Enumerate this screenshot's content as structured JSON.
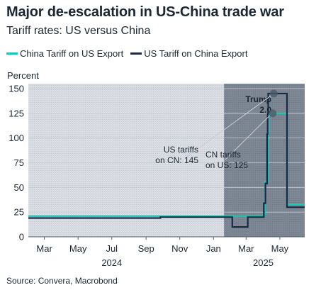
{
  "title": "Major de-escalation in US-China trade war",
  "subtitle": "Tariff rates: US versus China",
  "y_unit_label": "Percent",
  "source": "Source: Convera, Macrobond",
  "colors": {
    "china_series": "#18c6b4",
    "us_series": "#1b2a44",
    "background_shade": "#d9dde3",
    "highlight_shade": "#7d8794",
    "gridline": "#c9cdd3",
    "callout_marker": "#4a5b66"
  },
  "chart_data": {
    "type": "line",
    "title": "Major de-escalation in US-China trade war",
    "subtitle": "Tariff rates: US versus China",
    "ylabel": "Percent",
    "ylim": [
      0,
      155
    ],
    "yticks": [
      0,
      25,
      50,
      75,
      100,
      125,
      150
    ],
    "xlim": [
      "2024-02-01",
      "2025-06-15"
    ],
    "xtick_labels": [
      {
        "label": "Mar",
        "date": "2024-03-01"
      },
      {
        "label": "May",
        "date": "2024-05-01"
      },
      {
        "label": "Jul",
        "date": "2024-07-01"
      },
      {
        "label": "Sep",
        "date": "2024-09-01"
      },
      {
        "label": "Nov",
        "date": "2024-11-01"
      },
      {
        "label": "Jan",
        "date": "2025-01-01"
      },
      {
        "label": "Mar",
        "date": "2025-03-01"
      },
      {
        "label": "May",
        "date": "2025-05-01"
      }
    ],
    "year_labels": [
      {
        "label": "2024",
        "date": "2024-07-01"
      },
      {
        "label": "2025",
        "date": "2025-04-01"
      }
    ],
    "grid": "horizontal",
    "legend_position": "top",
    "shaded_periods": [
      {
        "start": "2024-02-01",
        "end": "2025-01-20",
        "style": "light"
      },
      {
        "start": "2025-01-20",
        "end": "2025-06-15",
        "style": "dark",
        "label": "Trump 2.0"
      }
    ],
    "series": [
      {
        "name": "China Tariff on US Export",
        "color": "#18c6b4",
        "points": [
          [
            "2024-02-01",
            21
          ],
          [
            "2025-04-01",
            21
          ],
          [
            "2025-04-01",
            23
          ],
          [
            "2025-04-04",
            23
          ],
          [
            "2025-04-04",
            56
          ],
          [
            "2025-04-09",
            56
          ],
          [
            "2025-04-09",
            105
          ],
          [
            "2025-04-11",
            105
          ],
          [
            "2025-04-11",
            125
          ],
          [
            "2025-05-14",
            125
          ],
          [
            "2025-05-14",
            33
          ],
          [
            "2025-06-15",
            33
          ]
        ]
      },
      {
        "name": "US Tariff on China Export",
        "color": "#1b2a44",
        "points": [
          [
            "2024-02-01",
            19
          ],
          [
            "2024-09-27",
            19
          ],
          [
            "2024-09-27",
            20
          ],
          [
            "2025-02-04",
            20
          ],
          [
            "2025-02-04",
            10
          ],
          [
            "2025-03-04",
            10
          ],
          [
            "2025-03-04",
            20
          ],
          [
            "2025-04-02",
            20
          ],
          [
            "2025-04-02",
            34
          ],
          [
            "2025-04-05",
            34
          ],
          [
            "2025-04-05",
            54
          ],
          [
            "2025-04-08",
            54
          ],
          [
            "2025-04-08",
            104
          ],
          [
            "2025-04-09",
            104
          ],
          [
            "2025-04-09",
            125
          ],
          [
            "2025-04-10",
            125
          ],
          [
            "2025-04-10",
            145
          ],
          [
            "2025-05-14",
            145
          ],
          [
            "2025-05-14",
            30
          ],
          [
            "2025-06-15",
            30
          ]
        ]
      }
    ],
    "annotations": [
      {
        "text": "US tariffs on CN: 145",
        "lines": [
          "US tariffs",
          "on CN: 145"
        ],
        "target": [
          "2025-04-20",
          145
        ]
      },
      {
        "text": "CN tariffs on US: 125",
        "lines": [
          "CN tariffs",
          "on US: 125"
        ],
        "target": [
          "2025-04-18",
          125
        ]
      },
      {
        "text": "Trump 2.0",
        "lines": [
          "Trump",
          "2.0"
        ]
      }
    ]
  }
}
